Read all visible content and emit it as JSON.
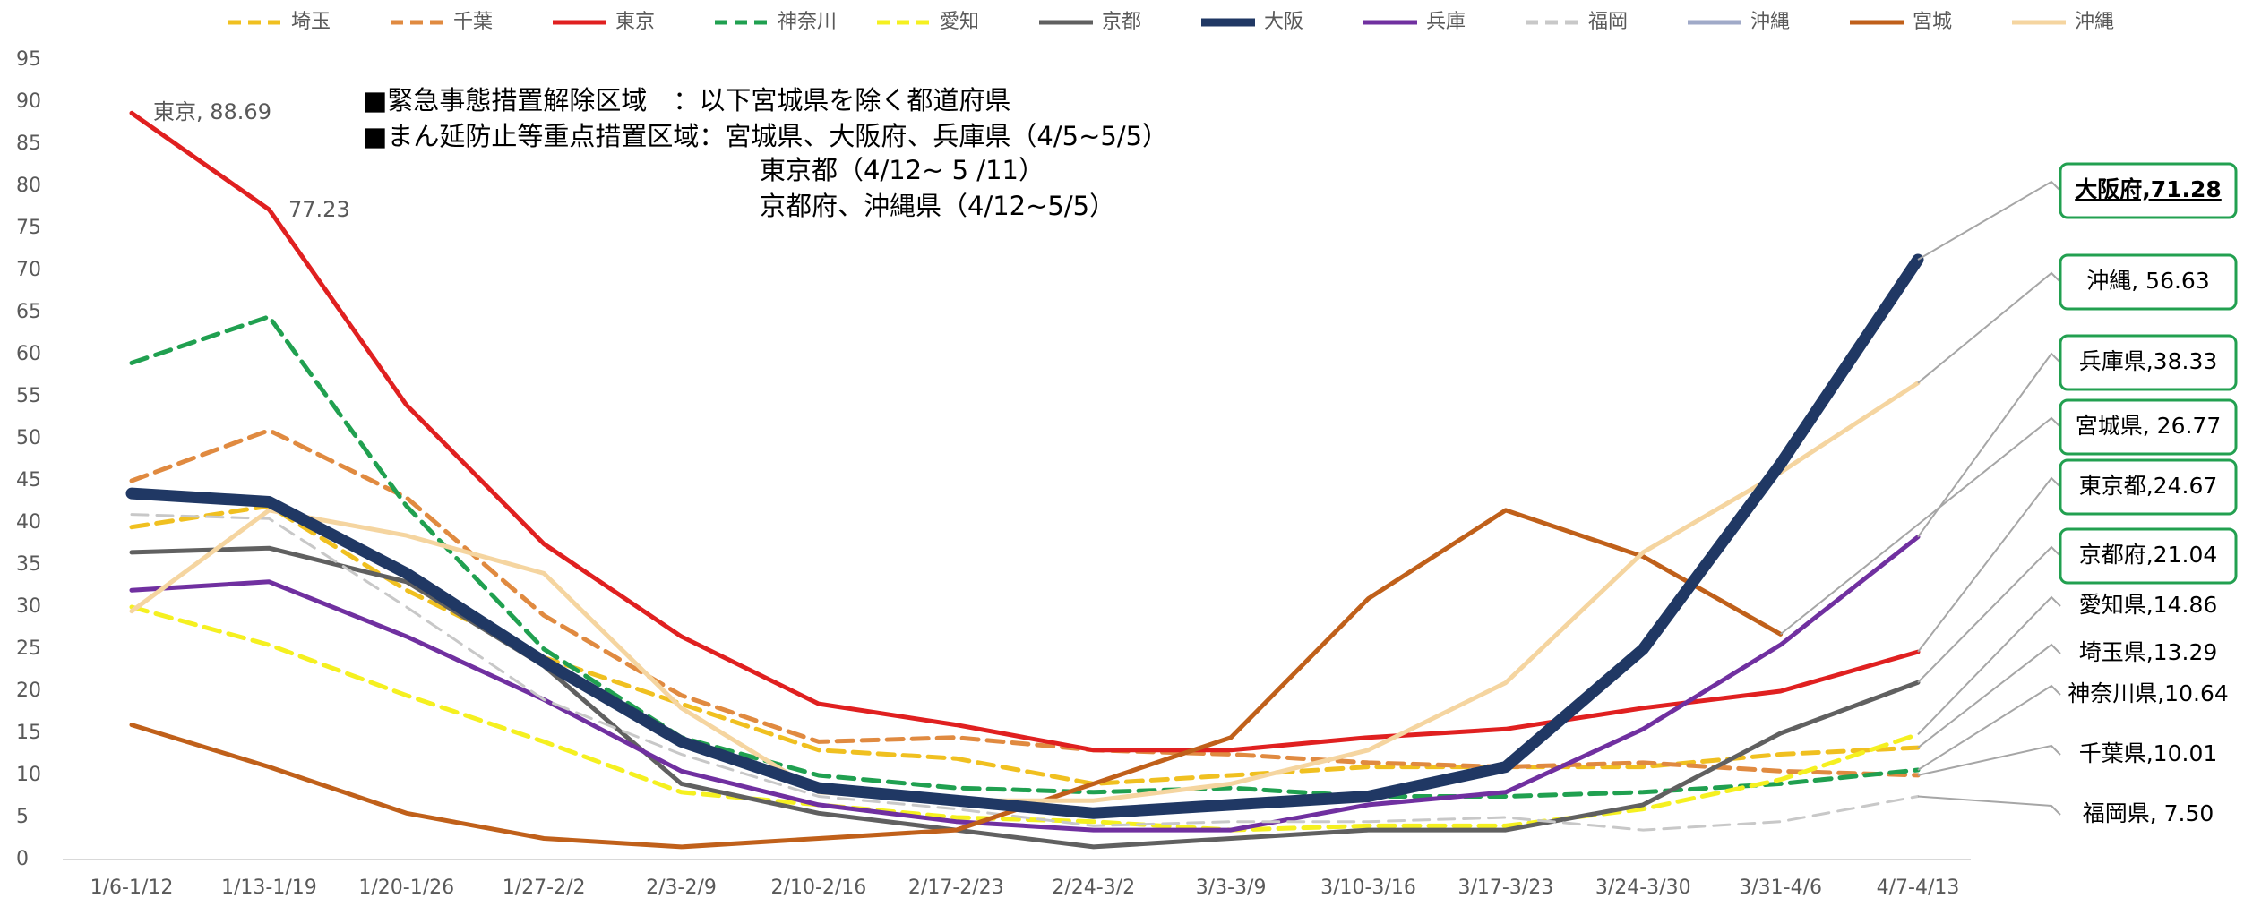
{
  "chart_data": {
    "type": "line",
    "categories": [
      "1/6-1/12",
      "1/13-1/19",
      "1/20-1/26",
      "1/27-2/2",
      "2/3-2/9",
      "2/10-2/16",
      "2/17-2/23",
      "2/24-3/2",
      "3/3-3/9",
      "3/10-3/16",
      "3/17-3/23",
      "3/24-3/30",
      "3/31-4/6",
      "4/7-4/13"
    ],
    "ylim": [
      0,
      95
    ],
    "yticks": [
      0,
      5,
      10,
      15,
      20,
      25,
      30,
      35,
      40,
      45,
      50,
      55,
      60,
      65,
      70,
      75,
      80,
      85,
      90,
      95
    ],
    "legend": "top",
    "series": [
      {
        "name": "埼玉",
        "color": "#f0c020",
        "dash": true,
        "values": [
          39.5,
          42,
          32,
          24,
          18.5,
          13,
          12,
          9,
          10,
          11,
          11,
          11,
          12.5,
          13.29
        ],
        "end_label": "埼玉県,13.29",
        "end_label_boxed": false
      },
      {
        "name": "千葉",
        "color": "#e08a40",
        "dash": true,
        "values": [
          45,
          51,
          43,
          29,
          19.5,
          14,
          14.5,
          13,
          12.5,
          11.5,
          11,
          11.5,
          10.5,
          10.01
        ],
        "end_label": "千葉県,10.01",
        "end_label_boxed": false
      },
      {
        "name": "東京",
        "color": "#e02020",
        "dash": false,
        "values": [
          88.69,
          77.23,
          54,
          37.5,
          26.5,
          18.5,
          16,
          13,
          13,
          14.5,
          15.5,
          18,
          20,
          24.67
        ],
        "end_label": "東京都,24.67",
        "end_label_boxed": true,
        "value_labels": [
          "東京, 88.69",
          "77.23"
        ]
      },
      {
        "name": "神奈川",
        "color": "#20a050",
        "dash": true,
        "values": [
          59,
          64.5,
          42,
          25,
          14.5,
          10,
          8.5,
          8,
          8.5,
          7.5,
          7.5,
          8,
          9,
          10.64
        ],
        "end_label": "神奈川県,10.64",
        "end_label_boxed": false
      },
      {
        "name": "愛知",
        "color": "#f5f020",
        "dash": true,
        "values": [
          30,
          25.5,
          19.5,
          14,
          8,
          6.5,
          5,
          4.5,
          3.5,
          4,
          4,
          6,
          9.5,
          14.86
        ],
        "end_label": "愛知県,14.86",
        "end_label_boxed": false
      },
      {
        "name": "京都",
        "color": "#606060",
        "dash": false,
        "values": [
          36.5,
          37,
          33,
          23,
          9,
          5.5,
          3.5,
          1.5,
          2.5,
          3.5,
          3.5,
          6.5,
          15,
          21.04
        ],
        "end_label": "京都府,21.04",
        "end_label_boxed": true
      },
      {
        "name": "大阪",
        "color": "#203864",
        "dash": false,
        "values": [
          43.5,
          42.5,
          34,
          23.5,
          14,
          8.5,
          7,
          5.5,
          6.5,
          7.5,
          11,
          25,
          47,
          71.28
        ],
        "end_label": "大阪府,71.28",
        "end_label_boxed": true
      },
      {
        "name": "兵庫",
        "color": "#7030a0",
        "dash": false,
        "values": [
          32,
          33,
          26.5,
          19,
          10.5,
          6.5,
          4.5,
          3.5,
          3.5,
          6.5,
          8,
          15.5,
          25.5,
          38.33
        ],
        "end_label": "兵庫県,38.33",
        "end_label_boxed": true
      },
      {
        "name": "福岡",
        "color": "#c8c8c8",
        "dash": true,
        "values": [
          41,
          40.5,
          30,
          19,
          12.5,
          7.5,
          6,
          4,
          4.5,
          4.5,
          5,
          3.5,
          4.5,
          7.5
        ],
        "end_label": "福岡県, 7.50",
        "end_label_boxed": false
      },
      {
        "name": "沖縄",
        "color": "#a0aac8",
        "dash": false,
        "values": [
          null,
          null,
          null,
          null,
          null,
          null,
          null,
          null,
          null,
          null,
          null,
          null,
          null,
          null
        ]
      },
      {
        "name": "宮城",
        "color": "#c0601a",
        "dash": false,
        "values": [
          16,
          11,
          5.5,
          2.5,
          1.5,
          2.5,
          3.5,
          9,
          14.5,
          31,
          41.5,
          36,
          26.77,
          null
        ],
        "end_label": "宮城県, 26.77",
        "end_label_boxed": true
      },
      {
        "name": "沖縄",
        "color": "#f5d5a0",
        "dash": false,
        "values": [
          29.5,
          41.5,
          38.5,
          34,
          18,
          8,
          7,
          7,
          9,
          13,
          21,
          36.5,
          46,
          56.63
        ],
        "end_label": "沖縄, 56.63",
        "end_label_boxed": true
      }
    ],
    "annotations": [
      "■緊急事態措置解除区域　：以下宮城県を除く都道府県",
      "■まん延防止等重点措置区域：宮城県、大阪府、兵庫県（4/5~5/5）",
      "東京都（4/12~ 5 /11）",
      "京都府、沖縄県（4/12~5/5）"
    ]
  }
}
